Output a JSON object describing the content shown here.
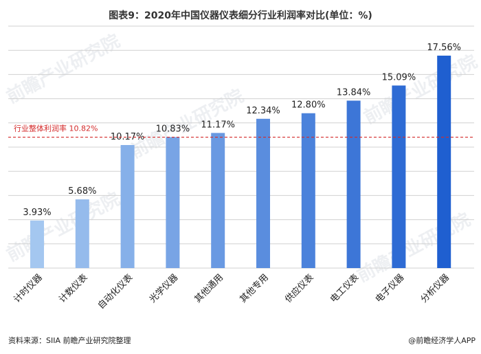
{
  "title": "图表9：2020年中国仪器仪表细分行业利润率对比(单位：%)",
  "source": "资料来源：SIIA 前瞻产业研究院整理",
  "brand": "@前瞻经济学人APP",
  "watermark_text": "前瞻产业研究院",
  "colors": {
    "bar_light": "#a4c7f0",
    "bar_dark": "#1f5fd0",
    "reference_line": "#d42b2b",
    "gridline": "#d0d0d0"
  },
  "chart_data": {
    "type": "bar",
    "categories": [
      "计时仪器",
      "计数仪表",
      "自动化仪表",
      "光学仪器",
      "其他通用",
      "其他专用",
      "供应仪表",
      "电工仪表",
      "电子仪器",
      "分析仪器"
    ],
    "values": [
      3.93,
      5.68,
      10.17,
      10.83,
      11.17,
      12.34,
      12.8,
      13.84,
      15.09,
      17.56
    ],
    "value_labels": [
      "3.93%",
      "5.68%",
      "10.17%",
      "10.83%",
      "11.17%",
      "12.34%",
      "12.80%",
      "13.84%",
      "15.09%",
      "17.56%"
    ],
    "reference_line": {
      "value": 10.82,
      "label": "行业整体利润率 10.82%"
    },
    "ylim": [
      0,
      20
    ],
    "grid": true,
    "legend": "none"
  }
}
